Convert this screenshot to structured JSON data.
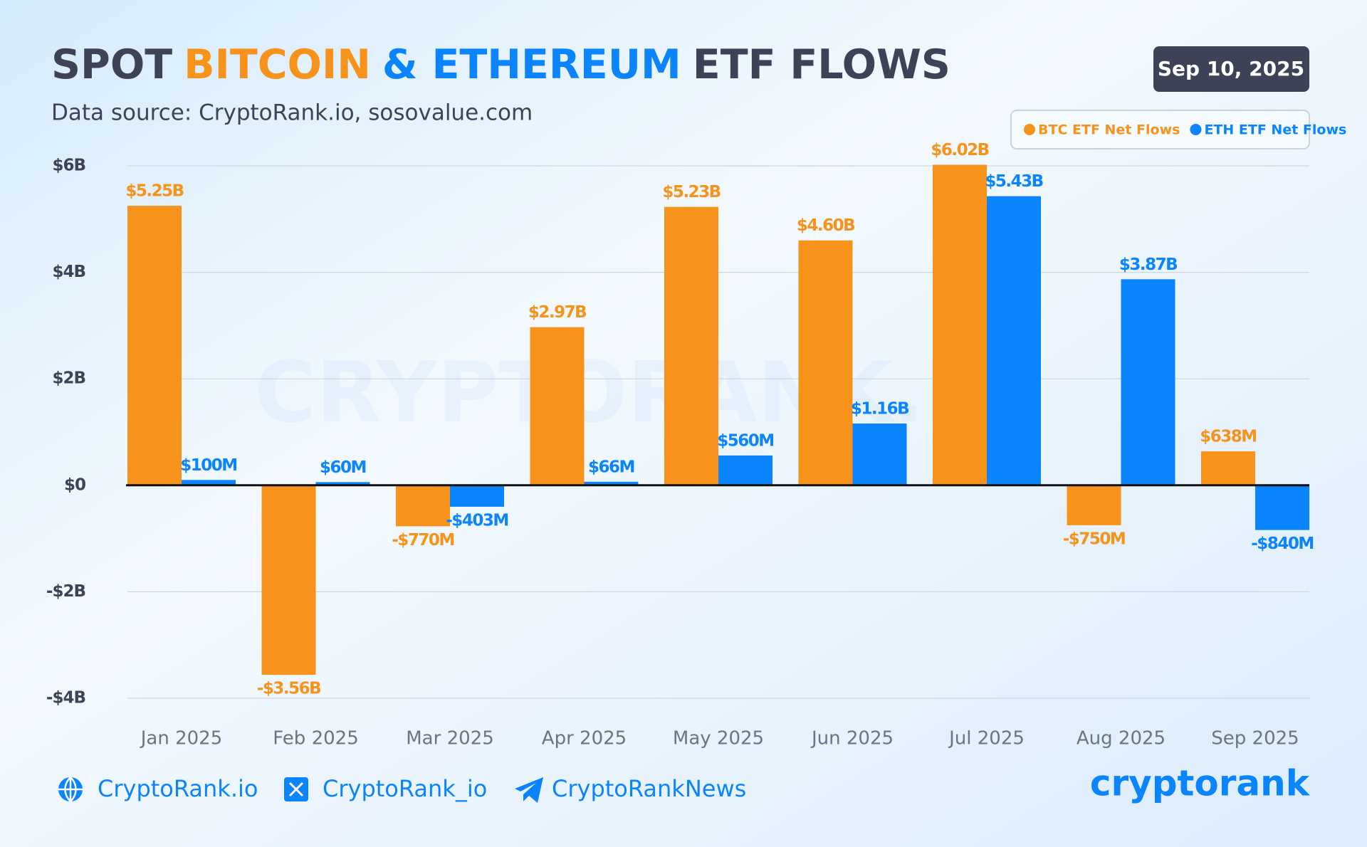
{
  "chart_data": {
    "type": "bar",
    "title_parts": [
      {
        "text": "SPOT",
        "color": "#3d4256"
      },
      {
        "text": "BITCOIN",
        "color": "#f7931a"
      },
      {
        "text": "& ETHEREUM",
        "color": "#0a84ff"
      },
      {
        "text": "ETF FLOWS",
        "color": "#3d4256"
      }
    ],
    "subtitle": "Data source: CryptoRank.io, sosovalue.com",
    "date": "Sep 10, 2025",
    "watermark": "CRYPTORANK.IO",
    "categories": [
      "Jan 2025",
      "Feb 2025",
      "Mar 2025",
      "Apr 2025",
      "May 2025",
      "Jun 2025",
      "Jul 2025",
      "Aug 2025",
      "Sep 2025"
    ],
    "series": [
      {
        "name": "BTC ETF Net Flows",
        "color": "#f7931a",
        "values": [
          5.25,
          -3.56,
          -0.77,
          2.97,
          5.23,
          4.6,
          6.02,
          -0.75,
          0.638
        ],
        "value_labels": [
          "$5.25B",
          "-$3.56B",
          "-$770M",
          "$2.97B",
          "$5.23B",
          "$4.60B",
          "$6.02B",
          "-$750M",
          "$638M"
        ]
      },
      {
        "name": "ETH ETF Net Flows",
        "color": "#0a84ff",
        "values": [
          0.1,
          0.06,
          -0.403,
          0.066,
          0.56,
          1.16,
          5.43,
          3.87,
          -0.84
        ],
        "value_labels": [
          "$100M",
          "$60M",
          "-$403M",
          "$66M",
          "$560M",
          "$1.16B",
          "$5.43B",
          "$3.87B",
          "-$840M"
        ]
      }
    ],
    "ylim": [
      -4,
      6
    ],
    "yticks": [
      {
        "value": -4,
        "label": "-$4B"
      },
      {
        "value": -2,
        "label": "-$2B"
      },
      {
        "value": 0,
        "label": "$0"
      },
      {
        "value": 2,
        "label": "$2B"
      },
      {
        "value": 4,
        "label": "$4B"
      },
      {
        "value": 6,
        "label": "$6B"
      }
    ],
    "grid": true,
    "legend": "top-right"
  },
  "footer": {
    "links": [
      "CryptoRank.io",
      "CryptoRank_io",
      "CryptoRankNews"
    ],
    "logo": "cryptorank"
  }
}
